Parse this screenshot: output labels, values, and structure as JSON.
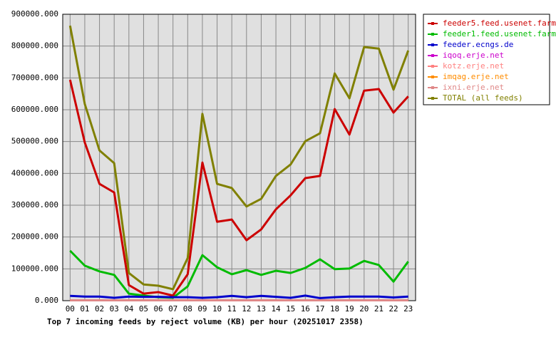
{
  "chart_data": {
    "type": "line",
    "title": "Top 7 incoming feeds by reject volume (KB) per hour (20251017 2358)",
    "categories": [
      "00",
      "01",
      "02",
      "03",
      "04",
      "05",
      "06",
      "07",
      "08",
      "09",
      "10",
      "11",
      "12",
      "13",
      "14",
      "15",
      "16",
      "17",
      "18",
      "19",
      "20",
      "21",
      "22",
      "23"
    ],
    "series": [
      {
        "name": "feeder5.feed.usenet.farm",
        "color": "#cc0000",
        "values": [
          694000,
          497000,
          367000,
          340000,
          49000,
          22000,
          27000,
          16000,
          83000,
          434000,
          248000,
          255000,
          190000,
          224000,
          287000,
          331000,
          385000,
          392000,
          602000,
          522000,
          660000,
          665000,
          591000,
          642000
        ]
      },
      {
        "name": "feeder1.feed.usenet.farm",
        "color": "#00bb00",
        "values": [
          157000,
          110000,
          92000,
          81000,
          22000,
          16000,
          11000,
          9000,
          45000,
          143000,
          105000,
          83000,
          96000,
          81000,
          94000,
          87000,
          103000,
          130000,
          99000,
          101000,
          125000,
          112000,
          60000,
          123000
        ]
      },
      {
        "name": "feeder.ecngs.de",
        "color": "#0000cc",
        "values": [
          15000,
          13000,
          13000,
          9000,
          13000,
          12000,
          12000,
          11000,
          11000,
          9000,
          11000,
          15000,
          11000,
          15000,
          12000,
          9000,
          16000,
          8000,
          11000,
          13000,
          13000,
          13000,
          10000,
          13000
        ]
      },
      {
        "name": "iqoq.erje.net",
        "color": "#cc00cc",
        "values": [
          1000,
          1000,
          1000,
          1000,
          1000,
          1000,
          1000,
          1000,
          1000,
          1000,
          1000,
          1000,
          1000,
          1000,
          1000,
          1000,
          1000,
          1000,
          1000,
          1000,
          1000,
          1000,
          1000,
          1000
        ]
      },
      {
        "name": "kotz.erje.net",
        "color": "#ff8080",
        "values": [
          1000,
          1000,
          1000,
          1000,
          1000,
          1000,
          1000,
          1000,
          1000,
          1000,
          1000,
          1000,
          1000,
          1000,
          1000,
          1000,
          1000,
          1000,
          1000,
          1000,
          1000,
          1000,
          1000,
          1000
        ]
      },
      {
        "name": "imqag.erje.net",
        "color": "#ff8c00",
        "values": [
          1000,
          1000,
          1000,
          1000,
          1000,
          1000,
          1000,
          1000,
          1000,
          1000,
          1000,
          1000,
          1000,
          1000,
          1000,
          1000,
          1000,
          1000,
          1000,
          1000,
          1000,
          1000,
          1000,
          1000
        ]
      },
      {
        "name": "ixni.erje.net",
        "color": "#e08888",
        "values": [
          1000,
          1000,
          1000,
          1000,
          1000,
          1000,
          1000,
          1000,
          1000,
          1000,
          1000,
          1000,
          1000,
          1000,
          1000,
          1000,
          1000,
          1000,
          1000,
          1000,
          1000,
          1000,
          1000,
          1000
        ]
      },
      {
        "name": "TOTAL (all feeds)",
        "color": "#808000",
        "values": [
          864000,
          618000,
          472000,
          432000,
          87000,
          51000,
          47000,
          36000,
          134000,
          587000,
          367000,
          354000,
          296000,
          320000,
          392000,
          428000,
          501000,
          526000,
          714000,
          636000,
          797000,
          792000,
          663000,
          786000
        ]
      }
    ],
    "ylim": [
      0,
      900000
    ],
    "yticks": [
      {
        "value": 0,
        "label": "0.000"
      },
      {
        "value": 100000,
        "label": "100000.000"
      },
      {
        "value": 200000,
        "label": "200000.000"
      },
      {
        "value": 300000,
        "label": "300000.000"
      },
      {
        "value": 400000,
        "label": "400000.000"
      },
      {
        "value": 500000,
        "label": "500000.000"
      },
      {
        "value": 600000,
        "label": "600000.000"
      },
      {
        "value": 700000,
        "label": "700000.000"
      },
      {
        "value": 800000,
        "label": "800000.000"
      },
      {
        "value": 900000,
        "label": "900000.000"
      }
    ],
    "grid": true,
    "legend": "right"
  }
}
